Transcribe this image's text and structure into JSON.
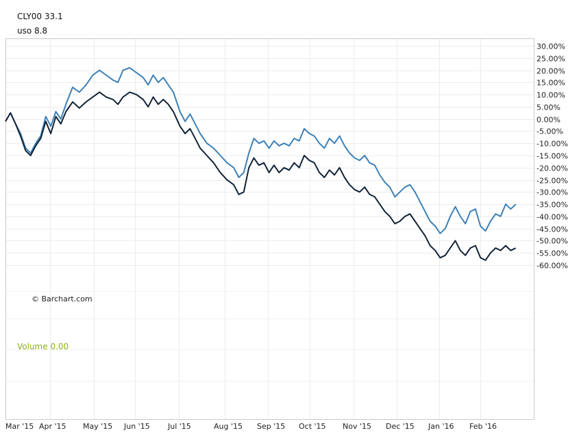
{
  "legend": {
    "series1": {
      "label": "CLY00",
      "value": "33.1"
    },
    "series2": {
      "label": "uso",
      "value": "8.8"
    }
  },
  "watermark": "© Barchart.com",
  "volume_label": "Volume 0.00",
  "colors": {
    "cly00": "#0f2236",
    "uso": "#3b80b8",
    "volume": "#8db022",
    "grid": "#ececec",
    "border": "#c8c8c8"
  },
  "chart_data": {
    "type": "line",
    "x_labels": [
      "Mar '15",
      "Apr '15",
      "May '15",
      "Jun '15",
      "Jul '15",
      "Aug '15",
      "Sep '15",
      "Oct '15",
      "Nov '15",
      "Dec '15",
      "Jan '16",
      "Feb '16"
    ],
    "y_ticks": [
      "30.00%",
      "25.00%",
      "20.00%",
      "15.00%",
      "10.00%",
      "5.00%",
      "0.00%",
      "-5.00%",
      "-10.00%",
      "-15.00%",
      "-20.00%",
      "-25.00%",
      "-30.00%",
      "-35.00%",
      "-40.00%",
      "-45.00%",
      "-50.00%",
      "-55.00%",
      "-60.00%"
    ],
    "ylim": [
      -62,
      33
    ],
    "series": [
      {
        "name": "CLY00",
        "points": [
          [
            0,
            -1
          ],
          [
            1.5,
            2.5
          ],
          [
            3,
            -2
          ],
          [
            4.5,
            -7
          ],
          [
            6,
            -13
          ],
          [
            7.5,
            -15
          ],
          [
            9,
            -11
          ],
          [
            10.5,
            -8
          ],
          [
            12,
            -1
          ],
          [
            13.5,
            -6
          ],
          [
            15,
            1
          ],
          [
            16.5,
            -2
          ],
          [
            18,
            3
          ],
          [
            20,
            7
          ],
          [
            22,
            4.5
          ],
          [
            24,
            7
          ],
          [
            26,
            9
          ],
          [
            28,
            11
          ],
          [
            30,
            9
          ],
          [
            32,
            8
          ],
          [
            33.5,
            6
          ],
          [
            35,
            9
          ],
          [
            37,
            11
          ],
          [
            39,
            10
          ],
          [
            41,
            8
          ],
          [
            42.5,
            5
          ],
          [
            44,
            9
          ],
          [
            45.5,
            6
          ],
          [
            47,
            8
          ],
          [
            48.5,
            6
          ],
          [
            50,
            3
          ],
          [
            52,
            -3
          ],
          [
            53.5,
            -6
          ],
          [
            55,
            -4
          ],
          [
            56.5,
            -8
          ],
          [
            58,
            -12
          ],
          [
            60,
            -15
          ],
          [
            62,
            -18
          ],
          [
            64,
            -22
          ],
          [
            66,
            -25
          ],
          [
            68,
            -27
          ],
          [
            69.5,
            -31
          ],
          [
            71,
            -30
          ],
          [
            72.5,
            -20
          ],
          [
            74,
            -16
          ],
          [
            75.5,
            -19
          ],
          [
            77,
            -18
          ],
          [
            78.5,
            -22
          ],
          [
            80,
            -19
          ],
          [
            81.5,
            -22
          ],
          [
            83,
            -20
          ],
          [
            84.5,
            -21
          ],
          [
            86,
            -18
          ],
          [
            87.5,
            -20
          ],
          [
            89,
            -15
          ],
          [
            90.5,
            -17
          ],
          [
            92,
            -18
          ],
          [
            93.5,
            -22
          ],
          [
            95,
            -24
          ],
          [
            96.5,
            -21
          ],
          [
            98,
            -23
          ],
          [
            99.5,
            -20
          ],
          [
            101,
            -24
          ],
          [
            102.5,
            -27
          ],
          [
            104,
            -29
          ],
          [
            105.5,
            -30
          ],
          [
            107,
            -28
          ],
          [
            108.5,
            -31
          ],
          [
            110,
            -32
          ],
          [
            111.5,
            -35
          ],
          [
            113,
            -38
          ],
          [
            114.5,
            -40
          ],
          [
            116,
            -43
          ],
          [
            117.5,
            -42
          ],
          [
            119,
            -40
          ],
          [
            120.5,
            -39
          ],
          [
            122,
            -42
          ],
          [
            123.5,
            -45
          ],
          [
            125,
            -48
          ],
          [
            126.5,
            -52
          ],
          [
            128,
            -54
          ],
          [
            129.5,
            -57
          ],
          [
            131,
            -56
          ],
          [
            132.5,
            -53
          ],
          [
            134,
            -50
          ],
          [
            135.5,
            -54
          ],
          [
            137,
            -56
          ],
          [
            138.5,
            -53
          ],
          [
            140,
            -52
          ],
          [
            141.5,
            -57
          ],
          [
            143,
            -58
          ],
          [
            144.5,
            -55
          ],
          [
            146,
            -53
          ],
          [
            147.5,
            -54
          ],
          [
            149,
            -52
          ],
          [
            150.5,
            -54
          ],
          [
            152,
            -53
          ]
        ]
      },
      {
        "name": "uso",
        "points": [
          [
            0,
            -1
          ],
          [
            1.5,
            2.5
          ],
          [
            3,
            -2
          ],
          [
            4.5,
            -6
          ],
          [
            6,
            -12
          ],
          [
            7.5,
            -14
          ],
          [
            9,
            -10
          ],
          [
            10.5,
            -7
          ],
          [
            12,
            1
          ],
          [
            13.5,
            -3
          ],
          [
            15,
            3
          ],
          [
            16.5,
            0
          ],
          [
            18,
            6
          ],
          [
            20,
            13
          ],
          [
            22,
            11
          ],
          [
            24,
            14
          ],
          [
            26,
            18
          ],
          [
            28,
            20
          ],
          [
            30,
            18
          ],
          [
            32,
            16
          ],
          [
            33.5,
            15
          ],
          [
            35,
            20
          ],
          [
            37,
            21
          ],
          [
            39,
            19
          ],
          [
            41,
            17
          ],
          [
            42.5,
            14
          ],
          [
            44,
            18
          ],
          [
            45.5,
            15
          ],
          [
            47,
            17
          ],
          [
            48.5,
            14
          ],
          [
            50,
            11
          ],
          [
            52,
            3
          ],
          [
            53.5,
            -1
          ],
          [
            55,
            2
          ],
          [
            56.5,
            -2
          ],
          [
            58,
            -6
          ],
          [
            60,
            -10
          ],
          [
            62,
            -12
          ],
          [
            64,
            -15
          ],
          [
            66,
            -18
          ],
          [
            68,
            -20
          ],
          [
            69.5,
            -24
          ],
          [
            71,
            -22
          ],
          [
            72.5,
            -14
          ],
          [
            74,
            -8
          ],
          [
            75.5,
            -10
          ],
          [
            77,
            -9
          ],
          [
            78.5,
            -12
          ],
          [
            80,
            -9
          ],
          [
            81.5,
            -11
          ],
          [
            83,
            -10
          ],
          [
            84.5,
            -11
          ],
          [
            86,
            -8
          ],
          [
            87.5,
            -9
          ],
          [
            89,
            -4
          ],
          [
            90.5,
            -6
          ],
          [
            92,
            -7
          ],
          [
            93.5,
            -10
          ],
          [
            95,
            -12
          ],
          [
            96.5,
            -8
          ],
          [
            98,
            -10
          ],
          [
            99.5,
            -7
          ],
          [
            101,
            -11
          ],
          [
            102.5,
            -14
          ],
          [
            104,
            -16
          ],
          [
            105.5,
            -17
          ],
          [
            107,
            -15
          ],
          [
            108.5,
            -18
          ],
          [
            110,
            -19
          ],
          [
            111.5,
            -23
          ],
          [
            113,
            -26
          ],
          [
            114.5,
            -28
          ],
          [
            116,
            -32
          ],
          [
            117.5,
            -30
          ],
          [
            119,
            -28
          ],
          [
            120.5,
            -27
          ],
          [
            122,
            -30
          ],
          [
            123.5,
            -34
          ],
          [
            125,
            -38
          ],
          [
            126.5,
            -42
          ],
          [
            128,
            -44
          ],
          [
            129.5,
            -47
          ],
          [
            131,
            -45
          ],
          [
            132.5,
            -40
          ],
          [
            134,
            -36
          ],
          [
            135.5,
            -40
          ],
          [
            137,
            -43
          ],
          [
            138.5,
            -38
          ],
          [
            140,
            -37
          ],
          [
            141.5,
            -44
          ],
          [
            143,
            -46
          ],
          [
            144.5,
            -42
          ],
          [
            146,
            -39
          ],
          [
            147.5,
            -40
          ],
          [
            149,
            -35
          ],
          [
            150.5,
            -37
          ],
          [
            152,
            -35
          ]
        ]
      }
    ]
  }
}
